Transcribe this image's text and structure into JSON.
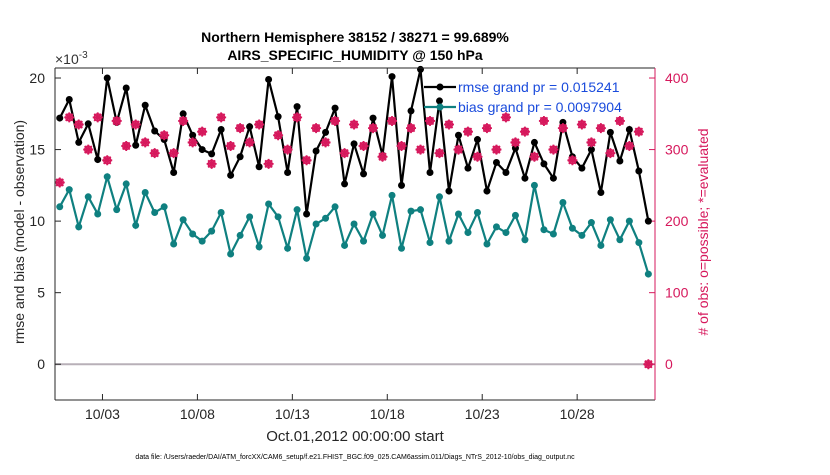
{
  "chart_data": {
    "type": "line",
    "title": "Northern Hemisphere 38152 / 38271 = 99.689%",
    "subtitle": "AIRS_SPECIFIC_HUMIDITY @ 150 hPa",
    "y_multiplier": "×10",
    "y_multiplier_exp": "-3",
    "ylabel": "rmse and bias (model - observation)",
    "y2label": "# of obs: o=possible; *=evaluated",
    "xlabel": "Oct.01,2012 00:00:00 start",
    "footer": "data file: /Users/raeder/DAI/ATM_forcXX/CAM6_setup/f.e21.FHIST_BGC.f09_025.CAM6assim.011/Diags_NTrS_2012-10/obs_diag_output.nc",
    "xlim": [
      0.5,
      32.1
    ],
    "xticks": [
      {
        "value": 3,
        "label": "10/03"
      },
      {
        "value": 8,
        "label": "10/08"
      },
      {
        "value": 13,
        "label": "10/13"
      },
      {
        "value": 18,
        "label": "10/18"
      },
      {
        "value": 23,
        "label": "10/23"
      },
      {
        "value": 28,
        "label": "10/28"
      }
    ],
    "ylim": [
      -2.5,
      20.7
    ],
    "yticks": [
      0,
      5,
      10,
      15,
      20
    ],
    "y2lim": [
      -50,
      414
    ],
    "y2ticks": [
      0,
      100,
      200,
      300,
      400
    ],
    "legend": "upper right",
    "x": [
      0.75,
      1.25,
      1.75,
      2.25,
      2.75,
      3.25,
      3.75,
      4.25,
      4.75,
      5.25,
      5.75,
      6.25,
      6.75,
      7.25,
      7.75,
      8.25,
      8.75,
      9.25,
      9.75,
      10.25,
      10.75,
      11.25,
      11.75,
      12.25,
      12.75,
      13.25,
      13.75,
      14.25,
      14.75,
      15.25,
      15.75,
      16.25,
      16.75,
      17.25,
      17.75,
      18.25,
      18.75,
      19.25,
      19.75,
      20.25,
      20.75,
      21.25,
      21.75,
      22.25,
      22.75,
      23.25,
      23.75,
      24.25,
      24.75,
      25.25,
      25.75,
      26.25,
      26.75,
      27.25,
      27.75,
      28.25,
      28.75,
      29.25,
      29.75,
      30.25,
      30.75,
      31.25,
      31.75
    ],
    "series": [
      {
        "name": "rmse grand pr = 0.015241",
        "color": "#000000",
        "marker": "dot",
        "values": [
          17.2,
          18.5,
          15.5,
          16.8,
          14.3,
          20.0,
          16.9,
          19.3,
          15.3,
          18.1,
          16.3,
          15.7,
          13.4,
          17.5,
          16.0,
          15.0,
          14.7,
          16.4,
          13.2,
          14.5,
          16.6,
          13.8,
          19.9,
          17.3,
          13.4,
          18.0,
          10.5,
          14.9,
          16.2,
          17.9,
          12.6,
          15.4,
          13.3,
          17.2,
          14.6,
          20.1,
          12.5,
          17.7,
          20.6,
          13.4,
          18.4,
          12.1,
          16.0,
          13.7,
          15.7,
          12.1,
          14.1,
          13.4,
          15.1,
          13.0,
          15.5,
          14.0,
          13.0,
          16.9,
          14.5,
          13.7,
          15.0,
          12.0,
          16.2,
          14.2,
          16.4,
          13.5,
          10.0
        ]
      },
      {
        "name": "bias grand pr = 0.0097904",
        "color": "#0f8080",
        "marker": "dot",
        "values": [
          11.0,
          12.2,
          9.6,
          11.7,
          10.5,
          13.1,
          10.8,
          12.6,
          9.7,
          12.0,
          10.6,
          11.0,
          8.4,
          10.1,
          9.1,
          8.6,
          9.3,
          10.6,
          7.7,
          9.0,
          10.3,
          8.2,
          11.2,
          10.3,
          8.1,
          10.8,
          7.4,
          9.8,
          10.2,
          11.0,
          8.3,
          9.8,
          8.6,
          10.5,
          9.0,
          11.8,
          8.1,
          10.7,
          10.8,
          8.5,
          11.7,
          8.6,
          10.5,
          9.2,
          10.6,
          8.4,
          9.6,
          9.2,
          10.4,
          8.7,
          12.5,
          9.4,
          9.1,
          11.3,
          9.5,
          9.0,
          9.9,
          8.3,
          10.1,
          8.7,
          10.0,
          8.5,
          6.3
        ]
      },
      {
        "color": "#d6185c",
        "axis": "y2",
        "marker": "star",
        "values": [
          254,
          345,
          335,
          300,
          345,
          285,
          340,
          305,
          335,
          310,
          295,
          320,
          295,
          340,
          310,
          325,
          280,
          345,
          305,
          330,
          310,
          335,
          280,
          320,
          300,
          345,
          285,
          330,
          310,
          340,
          295,
          335,
          305,
          330,
          290,
          340,
          305,
          330,
          300,
          340,
          295,
          335,
          300,
          325,
          290,
          330,
          300,
          345,
          310,
          325,
          290,
          340,
          300,
          330,
          285,
          335,
          310,
          330,
          295,
          340,
          305,
          325,
          0
        ]
      }
    ]
  }
}
